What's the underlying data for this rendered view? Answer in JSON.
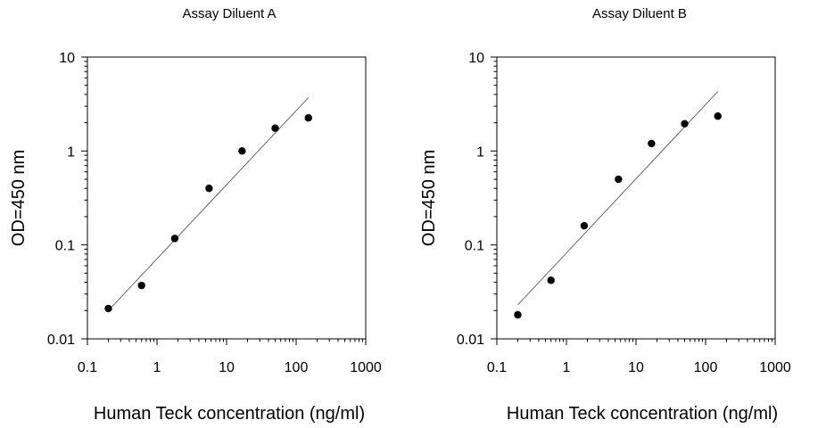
{
  "chart_data": [
    {
      "type": "scatter",
      "title": "Assay Diluent A",
      "xlabel": "Human Teck concentration (ng/ml)",
      "ylabel": "OD=450 nm",
      "xscale": "log",
      "yscale": "log",
      "xlim": [
        0.1,
        1000
      ],
      "ylim": [
        0.01,
        10
      ],
      "xticks": [
        "0.1",
        "1",
        "10",
        "100",
        "1000"
      ],
      "yticks": [
        "0.01",
        "0.1",
        "1",
        "10"
      ],
      "grid": false,
      "legend": "none",
      "points": [
        {
          "x": 0.2,
          "y": 0.021
        },
        {
          "x": 0.6,
          "y": 0.037
        },
        {
          "x": 1.8,
          "y": 0.117
        },
        {
          "x": 5.6,
          "y": 0.4
        },
        {
          "x": 16.7,
          "y": 1.0
        },
        {
          "x": 50,
          "y": 1.75
        },
        {
          "x": 150,
          "y": 2.25
        }
      ],
      "fit_line": [
        {
          "x": 0.2,
          "y": 0.02
        },
        {
          "x": 150,
          "y": 3.7
        }
      ]
    },
    {
      "type": "scatter",
      "title": "Assay Diluent B",
      "xlabel": "Human Teck concentration (ng/ml)",
      "ylabel": "OD=450 nm",
      "xscale": "log",
      "yscale": "log",
      "xlim": [
        0.1,
        1000
      ],
      "ylim": [
        0.01,
        10
      ],
      "xticks": [
        "0.1",
        "1",
        "10",
        "100",
        "1000"
      ],
      "yticks": [
        "0.01",
        "0.1",
        "1",
        "10"
      ],
      "grid": false,
      "legend": "none",
      "points": [
        {
          "x": 0.2,
          "y": 0.018
        },
        {
          "x": 0.6,
          "y": 0.042
        },
        {
          "x": 1.8,
          "y": 0.16
        },
        {
          "x": 5.6,
          "y": 0.5
        },
        {
          "x": 16.7,
          "y": 1.2
        },
        {
          "x": 50,
          "y": 1.95
        },
        {
          "x": 150,
          "y": 2.35
        }
      ],
      "fit_line": [
        {
          "x": 0.2,
          "y": 0.023
        },
        {
          "x": 150,
          "y": 4.3
        }
      ]
    }
  ]
}
